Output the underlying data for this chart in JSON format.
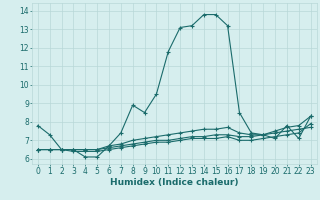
{
  "xlabel": "Humidex (Indice chaleur)",
  "x_values": [
    0,
    1,
    2,
    3,
    4,
    5,
    6,
    7,
    8,
    9,
    10,
    11,
    12,
    13,
    14,
    15,
    16,
    17,
    18,
    19,
    20,
    21,
    22,
    23
  ],
  "line1": [
    7.8,
    7.3,
    6.5,
    6.5,
    6.1,
    6.1,
    6.7,
    7.4,
    8.9,
    8.5,
    9.5,
    11.8,
    13.1,
    13.2,
    13.8,
    13.8,
    13.2,
    8.5,
    7.4,
    7.3,
    7.1,
    7.8,
    7.1,
    8.3
  ],
  "line2": [
    6.5,
    6.5,
    6.5,
    6.5,
    6.5,
    6.5,
    6.7,
    6.8,
    7.0,
    7.1,
    7.2,
    7.3,
    7.4,
    7.5,
    7.6,
    7.6,
    7.7,
    7.4,
    7.3,
    7.3,
    7.4,
    7.5,
    7.6,
    7.7
  ],
  "line3": [
    6.5,
    6.5,
    6.5,
    6.5,
    6.5,
    6.5,
    6.6,
    6.7,
    6.8,
    6.9,
    7.0,
    7.0,
    7.1,
    7.2,
    7.2,
    7.3,
    7.3,
    7.2,
    7.2,
    7.3,
    7.5,
    7.7,
    7.8,
    8.3
  ],
  "line4": [
    6.5,
    6.5,
    6.5,
    6.4,
    6.4,
    6.4,
    6.5,
    6.6,
    6.7,
    6.8,
    6.9,
    6.9,
    7.0,
    7.1,
    7.1,
    7.1,
    7.2,
    7.0,
    7.0,
    7.1,
    7.2,
    7.3,
    7.4,
    7.9
  ],
  "line_color": "#1a6b6b",
  "bg_color": "#d6eeee",
  "grid_color": "#b8d8d8",
  "ylim": [
    5.7,
    14.4
  ],
  "xlim": [
    -0.5,
    23.5
  ],
  "yticks": [
    6,
    7,
    8,
    9,
    10,
    11,
    12,
    13,
    14
  ],
  "xticks": [
    0,
    1,
    2,
    3,
    4,
    5,
    6,
    7,
    8,
    9,
    10,
    11,
    12,
    13,
    14,
    15,
    16,
    17,
    18,
    19,
    20,
    21,
    22,
    23
  ],
  "xlabel_fontsize": 6.5,
  "tick_fontsize": 5.5,
  "linewidth": 0.8,
  "markersize": 3.5
}
